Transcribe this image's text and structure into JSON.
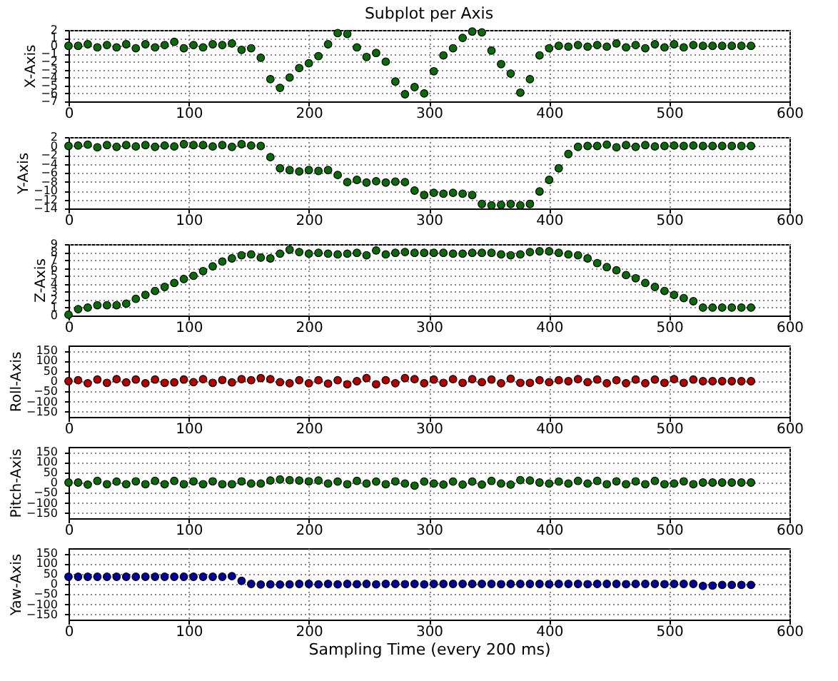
{
  "chart_data": [
    {
      "type": "scatter",
      "title": "Subplot per Axis",
      "ylabel": "X-Axis",
      "marker": "circle",
      "grid": true,
      "xlim": [
        0,
        600
      ],
      "xticks": [
        0,
        100,
        200,
        300,
        400,
        500,
        600
      ],
      "ylim": [
        -7,
        2
      ],
      "yticks": [
        -7,
        -6,
        -5,
        -4,
        -3,
        -2,
        -1,
        0,
        1,
        2
      ],
      "x": [
        0,
        8,
        16,
        24,
        32,
        40,
        48,
        56,
        64,
        72,
        80,
        88,
        96,
        104,
        112,
        120,
        128,
        136,
        144,
        152,
        160,
        168,
        176,
        184,
        192,
        200,
        208,
        216,
        224,
        232,
        240,
        248,
        256,
        264,
        272,
        280,
        288,
        296,
        304,
        312,
        320,
        328,
        336,
        344,
        352,
        360,
        368,
        376,
        384,
        392,
        400,
        408,
        416,
        424,
        432,
        440,
        448,
        456,
        464,
        472,
        480,
        488,
        496,
        504,
        512,
        520,
        528,
        536,
        544,
        552,
        560,
        568
      ],
      "series": [
        {
          "color": "#0b6b0b",
          "values": [
            0,
            0,
            0.2,
            -0.2,
            0.1,
            -0.2,
            0.2,
            -0.3,
            0.2,
            -0.2,
            0.1,
            0.5,
            -0.3,
            0.1,
            -0.2,
            0.2,
            0.1,
            0.3,
            -0.5,
            -0.3,
            -1.5,
            -4.2,
            -5.3,
            -4,
            -2.8,
            -2.2,
            -1.3,
            0.2,
            1.6,
            1.5,
            -0.2,
            -1.4,
            -0.9,
            -2,
            -4.5,
            -6.1,
            -5.2,
            -6,
            -3.2,
            -1.2,
            -0.3,
            1,
            1.8,
            1.7,
            -0.6,
            -2.3,
            -3.5,
            -5.9,
            -4.2,
            -1.2,
            -0.3,
            0,
            -0.1,
            0.1,
            -0.1,
            0.1,
            -0.1,
            0.3,
            -0.2,
            0.1,
            -0.3,
            0.2,
            -0.2,
            0.2,
            -0.2,
            0.1,
            0,
            0,
            0,
            0,
            0,
            0
          ]
        }
      ]
    },
    {
      "type": "scatter",
      "ylabel": "Y-Axis",
      "marker": "circle",
      "grid": true,
      "xlim": [
        0,
        600
      ],
      "xticks": [
        0,
        100,
        200,
        300,
        400,
        500,
        600
      ],
      "ylim": [
        -14,
        2
      ],
      "yticks": [
        -14,
        -12,
        -10,
        -8,
        -6,
        -4,
        -2,
        0,
        2
      ],
      "x": [
        0,
        8,
        16,
        24,
        32,
        40,
        48,
        56,
        64,
        72,
        80,
        88,
        96,
        104,
        112,
        120,
        128,
        136,
        144,
        152,
        160,
        168,
        176,
        184,
        192,
        200,
        208,
        216,
        224,
        232,
        240,
        248,
        256,
        264,
        272,
        280,
        288,
        296,
        304,
        312,
        320,
        328,
        336,
        344,
        352,
        360,
        368,
        376,
        384,
        392,
        400,
        408,
        416,
        424,
        432,
        440,
        448,
        456,
        464,
        472,
        480,
        488,
        496,
        504,
        512,
        520,
        528,
        536,
        544,
        552,
        560,
        568
      ],
      "series": [
        {
          "color": "#0b6b0b",
          "values": [
            0,
            0.1,
            0.3,
            -0.3,
            0.2,
            -0.2,
            0.2,
            -0.1,
            0.2,
            -0.2,
            0.1,
            -0.1,
            0.4,
            0.2,
            0.2,
            -0.1,
            0.2,
            -0.2,
            0.4,
            0.1,
            0,
            -2.5,
            -5,
            -5.4,
            -5.7,
            -5.4,
            -5.6,
            -5.4,
            -6.5,
            -8.1,
            -7.6,
            -8.2,
            -7.9,
            -8.2,
            -8,
            -8.1,
            -10,
            -11,
            -10.5,
            -10.7,
            -10.5,
            -10.7,
            -11,
            -13,
            -13.3,
            -13.2,
            -13,
            -13.3,
            -13,
            -10.2,
            -7.6,
            -5,
            -1.8,
            -0.2,
            0,
            0,
            0.3,
            -0.3,
            0.2,
            -0.2,
            0.2,
            -0.1,
            0,
            0.1,
            0,
            0.1,
            0,
            0,
            0,
            0,
            0,
            0
          ]
        }
      ]
    },
    {
      "type": "scatter",
      "ylabel": "Z-Axis",
      "marker": "circle",
      "grid": true,
      "xlim": [
        0,
        600
      ],
      "xticks": [
        0,
        100,
        200,
        300,
        400,
        500,
        600
      ],
      "ylim": [
        0,
        9
      ],
      "yticks": [
        0,
        1,
        2,
        3,
        4,
        5,
        6,
        7,
        8,
        9
      ],
      "x": [
        0,
        8,
        16,
        24,
        32,
        40,
        48,
        56,
        64,
        72,
        80,
        88,
        96,
        104,
        112,
        120,
        128,
        136,
        144,
        152,
        160,
        168,
        176,
        184,
        192,
        200,
        208,
        216,
        224,
        232,
        240,
        248,
        256,
        264,
        272,
        280,
        288,
        296,
        304,
        312,
        320,
        328,
        336,
        344,
        352,
        360,
        368,
        376,
        384,
        392,
        400,
        408,
        416,
        424,
        432,
        440,
        448,
        456,
        464,
        472,
        480,
        488,
        496,
        504,
        512,
        520,
        528,
        536,
        544,
        552,
        560,
        568
      ],
      "series": [
        {
          "color": "#0b6b0b",
          "values": [
            0.1,
            0.8,
            1,
            1.3,
            1.3,
            1.3,
            1.5,
            2.1,
            2.6,
            3.1,
            3.6,
            4.1,
            4.6,
            5,
            5.6,
            6.2,
            6.8,
            7.2,
            7.6,
            7.7,
            7.3,
            7.2,
            7.8,
            8.3,
            8,
            7.8,
            7.9,
            7.8,
            7.7,
            7.8,
            7.9,
            7.6,
            8.2,
            7.7,
            7.9,
            8,
            7.9,
            7.9,
            7.9,
            7.9,
            7.8,
            7.8,
            7.9,
            7.9,
            7.9,
            7.7,
            7.6,
            7.7,
            8,
            8.1,
            8.1,
            7.9,
            7.7,
            7.6,
            7.2,
            6.6,
            6.1,
            5.7,
            5.1,
            4.7,
            4.1,
            3.6,
            3.1,
            2.6,
            2.2,
            1.8,
            1,
            1,
            1,
            1,
            1,
            1
          ]
        }
      ]
    },
    {
      "type": "scatter",
      "ylabel": "Roll-Axis",
      "marker": "circle",
      "grid": true,
      "xlim": [
        0,
        600
      ],
      "xticks": [
        0,
        100,
        200,
        300,
        400,
        500,
        600
      ],
      "ylim": [
        -175,
        175
      ],
      "yticks": [
        -150,
        -100,
        -50,
        0,
        50,
        100,
        150
      ],
      "x": [
        0,
        8,
        16,
        24,
        32,
        40,
        48,
        56,
        64,
        72,
        80,
        88,
        96,
        104,
        112,
        120,
        128,
        136,
        144,
        152,
        160,
        168,
        176,
        184,
        192,
        200,
        208,
        216,
        224,
        232,
        240,
        248,
        256,
        264,
        272,
        280,
        288,
        296,
        304,
        312,
        320,
        328,
        336,
        344,
        352,
        360,
        368,
        376,
        384,
        392,
        400,
        408,
        416,
        424,
        432,
        440,
        448,
        456,
        464,
        472,
        480,
        488,
        496,
        504,
        512,
        520,
        528,
        536,
        544,
        552,
        560,
        568
      ],
      "series": [
        {
          "color": "#b40000",
          "values": [
            0,
            5,
            -10,
            8,
            -8,
            10,
            -6,
            8,
            -10,
            8,
            -8,
            -6,
            8,
            -5,
            10,
            -8,
            6,
            -6,
            10,
            5,
            15,
            10,
            -5,
            -10,
            5,
            -10,
            5,
            -12,
            5,
            -15,
            0,
            15,
            -15,
            5,
            -10,
            15,
            10,
            -10,
            8,
            -8,
            10,
            -8,
            10,
            -5,
            8,
            -10,
            12,
            -8,
            -8,
            5,
            -5,
            5,
            0,
            10,
            -5,
            8,
            -10,
            5,
            -10,
            8,
            -10,
            8,
            -8,
            10,
            -8,
            8,
            0,
            0,
            0,
            0,
            0,
            0
          ]
        }
      ]
    },
    {
      "type": "scatter",
      "ylabel": "Pitch-Axis",
      "marker": "circle",
      "grid": true,
      "xlim": [
        0,
        600
      ],
      "xticks": [
        0,
        100,
        200,
        300,
        400,
        500,
        600
      ],
      "ylim": [
        -175,
        175
      ],
      "yticks": [
        -150,
        -100,
        -50,
        0,
        50,
        100,
        150
      ],
      "x": [
        0,
        8,
        16,
        24,
        32,
        40,
        48,
        56,
        64,
        72,
        80,
        88,
        96,
        104,
        112,
        120,
        128,
        136,
        144,
        152,
        160,
        168,
        176,
        184,
        192,
        200,
        208,
        216,
        224,
        232,
        240,
        248,
        256,
        264,
        272,
        280,
        288,
        296,
        304,
        312,
        320,
        328,
        336,
        344,
        352,
        360,
        368,
        376,
        384,
        392,
        400,
        408,
        416,
        424,
        432,
        440,
        448,
        456,
        464,
        472,
        480,
        488,
        496,
        504,
        512,
        520,
        528,
        536,
        544,
        552,
        560,
        568
      ],
      "series": [
        {
          "color": "#0b6b0b",
          "values": [
            0,
            0,
            -10,
            8,
            -8,
            5,
            -8,
            6,
            -8,
            8,
            -8,
            8,
            -8,
            6,
            -8,
            6,
            -8,
            -8,
            6,
            -5,
            -5,
            10,
            15,
            12,
            10,
            6,
            10,
            -5,
            5,
            -8,
            8,
            -5,
            5,
            -8,
            6,
            -5,
            -15,
            5,
            -5,
            -10,
            5,
            -10,
            5,
            -10,
            8,
            -5,
            -10,
            12,
            10,
            0,
            -5,
            5,
            -5,
            8,
            -5,
            8,
            -8,
            6,
            -8,
            6,
            -8,
            8,
            -8,
            -5,
            6,
            -8,
            0,
            0,
            0,
            0,
            0,
            0
          ]
        }
      ]
    },
    {
      "type": "scatter",
      "ylabel": "Yaw-Axis",
      "xlabel": "Sampling Time (every 200 ms)",
      "marker": "circle",
      "grid": true,
      "xlim": [
        0,
        600
      ],
      "xticks": [
        0,
        100,
        200,
        300,
        400,
        500,
        600
      ],
      "ylim": [
        -175,
        175
      ],
      "yticks": [
        -150,
        -100,
        -50,
        0,
        50,
        100,
        150
      ],
      "x": [
        0,
        8,
        16,
        24,
        32,
        40,
        48,
        56,
        64,
        72,
        80,
        88,
        96,
        104,
        112,
        120,
        128,
        136,
        144,
        152,
        160,
        168,
        176,
        184,
        192,
        200,
        208,
        216,
        224,
        232,
        240,
        248,
        256,
        264,
        272,
        280,
        288,
        296,
        304,
        312,
        320,
        328,
        336,
        344,
        352,
        360,
        368,
        376,
        384,
        392,
        400,
        408,
        416,
        424,
        432,
        440,
        448,
        456,
        464,
        472,
        480,
        488,
        496,
        504,
        512,
        520,
        528,
        536,
        544,
        552,
        560,
        568
      ],
      "series": [
        {
          "color": "#00009c",
          "values": [
            35,
            35,
            35,
            35,
            35,
            35,
            35,
            35,
            35,
            35,
            35,
            35,
            35,
            35,
            35,
            35,
            35,
            38,
            15,
            0,
            -3,
            -2,
            -3,
            -2,
            0,
            0,
            -2,
            0,
            -2,
            0,
            -1,
            0,
            -2,
            0,
            0,
            -1,
            0,
            -2,
            0,
            0,
            0,
            0,
            0,
            0,
            0,
            -1,
            0,
            0,
            0,
            0,
            -1,
            0,
            0,
            0,
            -1,
            0,
            0,
            0,
            -1,
            0,
            0,
            0,
            -1,
            0,
            0,
            0,
            -10,
            -8,
            -5,
            -5,
            -5,
            -5
          ]
        }
      ]
    }
  ]
}
